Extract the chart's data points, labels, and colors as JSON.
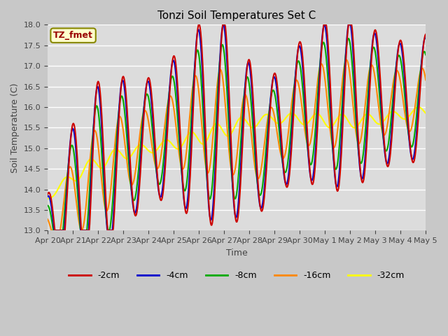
{
  "title": "Tonzi Soil Temperatures Set C",
  "xlabel": "Time",
  "ylabel": "Soil Temperature (C)",
  "ylim": [
    13.0,
    18.0
  ],
  "yticks": [
    13.0,
    13.5,
    14.0,
    14.5,
    15.0,
    15.5,
    16.0,
    16.5,
    17.0,
    17.5,
    18.0
  ],
  "xtick_labels": [
    "Apr 20",
    "Apr 21",
    "Apr 22",
    "Apr 23",
    "Apr 24",
    "Apr 25",
    "Apr 26",
    "Apr 27",
    "Apr 28",
    "Apr 29",
    "Apr 30",
    "May 1",
    "May 2",
    "May 3",
    "May 4",
    "May 5"
  ],
  "colors": {
    "-2cm": "#cc0000",
    "-4cm": "#0000cc",
    "-8cm": "#00aa00",
    "-16cm": "#ff8800",
    "-32cm": "#ffff00"
  },
  "legend_label": "TZ_fmet",
  "linewidth": 1.5
}
